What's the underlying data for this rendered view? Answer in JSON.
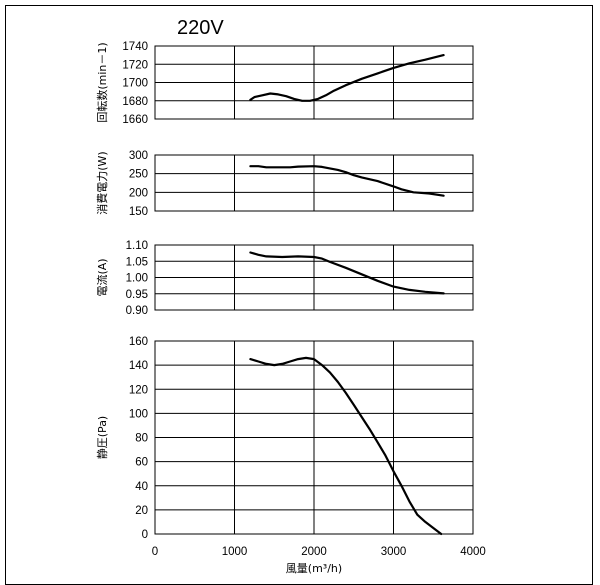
{
  "title": "220V",
  "chart_data": [
    {
      "type": "line",
      "ylabel": "回転数(min－1)",
      "xlim": [
        0,
        4000
      ],
      "ylim": [
        1660,
        1740
      ],
      "yticks": [
        1660,
        1680,
        1700,
        1720,
        1740
      ],
      "series": [
        {
          "x": [
            1200,
            1250,
            1350,
            1450,
            1550,
            1650,
            1750,
            1850,
            1950,
            2050,
            2150,
            2250,
            2400,
            2600,
            2800,
            3000,
            3200,
            3400,
            3630
          ],
          "y": [
            1681,
            1684,
            1686,
            1688,
            1687,
            1685,
            1682,
            1680,
            1680,
            1682,
            1686,
            1691,
            1697,
            1704,
            1710,
            1716,
            1721,
            1725,
            1730
          ]
        }
      ]
    },
    {
      "type": "line",
      "ylabel": "消費電力(W)",
      "xlim": [
        0,
        4000
      ],
      "ylim": [
        150,
        300
      ],
      "yticks": [
        150,
        200,
        250,
        300
      ],
      "series": [
        {
          "x": [
            1200,
            1300,
            1400,
            1600,
            1700,
            1800,
            2000,
            2100,
            2200,
            2300,
            2400,
            2500,
            2600,
            2800,
            3000,
            3100,
            3250,
            3450,
            3630
          ],
          "y": [
            270,
            270,
            267,
            267,
            267,
            269,
            270,
            268,
            264,
            260,
            254,
            246,
            240,
            230,
            216,
            208,
            200,
            197,
            191
          ]
        }
      ]
    },
    {
      "type": "line",
      "ylabel": "電流(A)",
      "xlim": [
        0,
        4000
      ],
      "ylim": [
        0.9,
        1.1
      ],
      "yticks": [
        "0.90",
        "0.95",
        "1.00",
        "1.05",
        "1.10"
      ],
      "series": [
        {
          "x": [
            1200,
            1300,
            1400,
            1600,
            1800,
            2000,
            2100,
            2200,
            2400,
            2600,
            2800,
            3000,
            3200,
            3400,
            3630
          ],
          "y": [
            1.077,
            1.07,
            1.065,
            1.063,
            1.065,
            1.063,
            1.058,
            1.048,
            1.03,
            1.01,
            0.99,
            0.972,
            0.962,
            0.956,
            0.951
          ]
        }
      ]
    },
    {
      "type": "line",
      "ylabel": "静圧(Pa)",
      "xlabel": "風量(m³/h)",
      "xlim": [
        0,
        4000
      ],
      "ylim": [
        0,
        160
      ],
      "yticks": [
        0,
        20,
        40,
        60,
        80,
        100,
        120,
        140,
        160
      ],
      "xticks": [
        0,
        1000,
        2000,
        3000,
        4000
      ],
      "series": [
        {
          "x": [
            1200,
            1300,
            1400,
            1500,
            1600,
            1700,
            1800,
            1900,
            2000,
            2100,
            2200,
            2300,
            2400,
            2500,
            2600,
            2700,
            2800,
            2900,
            3000,
            3100,
            3200,
            3300,
            3400,
            3500,
            3600
          ],
          "y": [
            145,
            143,
            141,
            140,
            141,
            143,
            145,
            146,
            145,
            140,
            134,
            126,
            117,
            107,
            97,
            87,
            76,
            65,
            52,
            40,
            27,
            16,
            10,
            5,
            0
          ]
        }
      ]
    }
  ]
}
